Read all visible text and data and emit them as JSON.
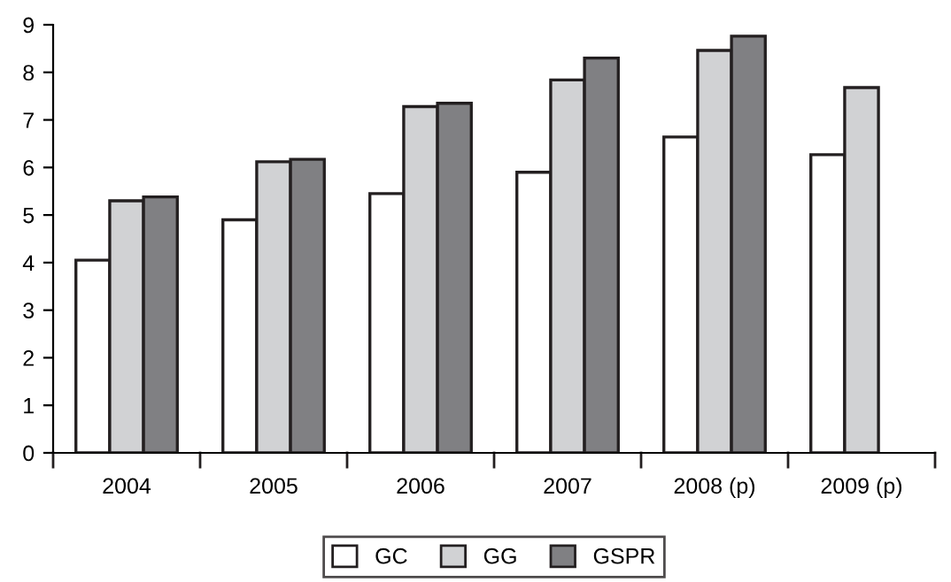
{
  "chart_data": {
    "type": "bar",
    "categories": [
      "2004",
      "2005",
      "2006",
      "2007",
      "2008 (p)",
      "2009 (p)"
    ],
    "series": [
      {
        "name": "GC",
        "color": "#ffffff",
        "values": [
          4.05,
          4.9,
          5.45,
          5.9,
          6.64,
          6.27
        ]
      },
      {
        "name": "GG",
        "color": "#d1d2d4",
        "values": [
          5.3,
          6.12,
          7.28,
          7.84,
          8.46,
          7.68
        ]
      },
      {
        "name": "GSPR",
        "color": "#808083",
        "values": [
          5.38,
          6.17,
          7.35,
          8.3,
          8.76,
          null
        ]
      }
    ],
    "ylim": [
      0,
      9
    ],
    "yticks": [
      0,
      1,
      2,
      3,
      4,
      5,
      6,
      7,
      8,
      9
    ],
    "grid": false,
    "legend": "bottom"
  }
}
